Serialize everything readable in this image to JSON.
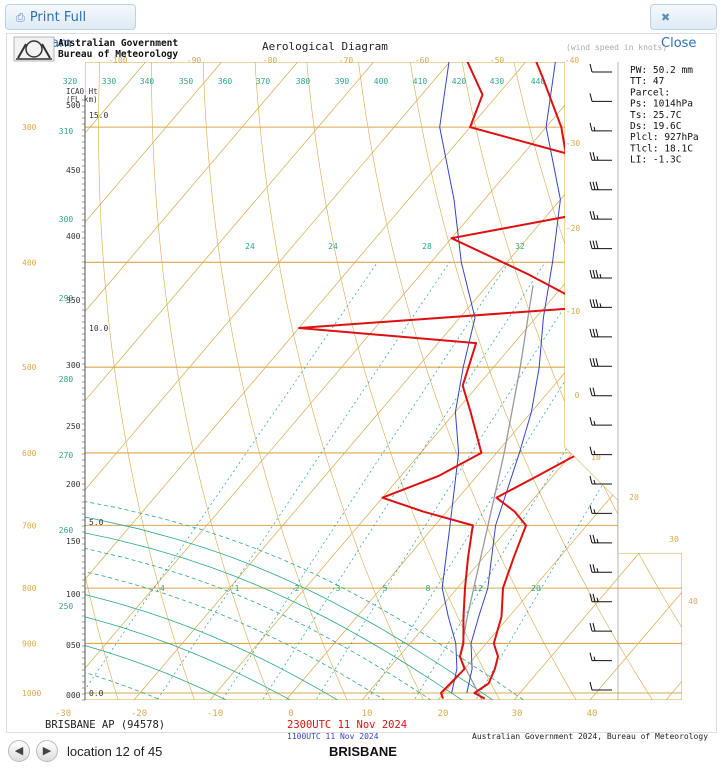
{
  "toolbar": {
    "print_label": "Print Full Diagram",
    "close_label": "Close"
  },
  "header": {
    "org_line1": "Australian Government",
    "org_line2": "Bureau of Meteorology",
    "title": "Aerological Diagram",
    "wind_units": "(wind speed in knots)"
  },
  "stats": {
    "lines": [
      "PW: 50.2 mm",
      "TT:  47",
      "Parcel:",
      " Ps: 1014hPa",
      " Ts:  25.7C",
      " Ds:  19.6C",
      " Plcl:  927hPa",
      " Tlcl:  18.1C",
      " LI:  -1.3C"
    ]
  },
  "footer_info": {
    "station": "BRISBANE AP (94578)",
    "time_red": "2300UTC 11 Nov 2024",
    "time_blue": "1100UTC 11 Nov 2024",
    "credit": "Australian Government 2024, Bureau of Meteorology"
  },
  "navigation": {
    "location_text": "location 12 of 45",
    "station_name": "BRISBANE"
  },
  "colors": {
    "axes": "#d9a94a",
    "dry_adiabats": "#d9a94a",
    "moist_adiabats": "#2aa88a",
    "mixing_ratio": "#1aa0a0",
    "sounding_2300": "#dd1111",
    "sounding_1100": "#3344cc",
    "parcel": "#999999",
    "iso_labels": "#2aa88a"
  },
  "chart_data": {
    "type": "line",
    "title": "Aerological Diagram",
    "xlabel": "",
    "ylabel": "",
    "pressure_levels": [
      1000,
      900,
      800,
      700,
      600,
      500,
      400,
      300,
      200
    ],
    "temperature_ticks": [
      -30,
      -20,
      -10,
      0,
      10,
      20,
      30,
      40
    ],
    "top_temperature_ticks": [
      -100,
      -90,
      -80,
      -70,
      -60,
      -50,
      -40
    ],
    "diagonal_temperature_labels": [
      "-30",
      "-20",
      "-10",
      "0",
      "10",
      "20",
      "30",
      "40"
    ],
    "theta_labels": [
      "320",
      "330",
      "340",
      "350",
      "360",
      "370",
      "380",
      "390",
      "400",
      "410",
      "420",
      "430",
      "440"
    ],
    "theta_side_labels": [
      "310",
      "300",
      "290",
      "280",
      "270",
      "260",
      "250"
    ],
    "theta_e_labels": [
      "24",
      "24",
      "28",
      "32"
    ],
    "mixing_ratio_labels": [
      ".4",
      "1",
      "2",
      "3",
      "5",
      "8",
      "12",
      "20"
    ],
    "height_axis": {
      "title_lines": [
        "ICAO Ht",
        "(FL   km)"
      ],
      "pressure_ticks": [
        "500",
        "450",
        "400",
        "350",
        "300",
        "250",
        "200",
        "150",
        "100",
        "050",
        "000"
      ],
      "km_ticks": [
        "15.0",
        "10.0",
        "5.0",
        "0.0"
      ]
    },
    "series": [
      {
        "name": "2300UTC 11 Nov 2024",
        "temperature": [
          [
            1012,
            26.0
          ],
          [
            1000,
            24.0
          ],
          [
            980,
            24.8
          ],
          [
            950,
            24.0
          ],
          [
            925,
            23.0
          ],
          [
            900,
            21.0
          ],
          [
            850,
            19.0
          ],
          [
            800,
            16.0
          ],
          [
            750,
            14.0
          ],
          [
            700,
            12.0
          ],
          [
            680,
            9.0
          ],
          [
            660,
            5.0
          ],
          [
            630,
            8.0
          ],
          [
            600,
            11.0
          ],
          [
            570,
            10.0
          ],
          [
            540,
            8.0
          ],
          [
            500,
            6.0
          ],
          [
            475,
            5.0
          ],
          [
            450,
            7.0
          ],
          [
            420,
            1.0
          ],
          [
            400,
            -4.0
          ],
          [
            380,
            -9.0
          ],
          [
            360,
            -15.0
          ],
          [
            330,
            -22.0
          ],
          [
            300,
            -28.0
          ],
          [
            270,
            -36.0
          ],
          [
            250,
            -42.0
          ],
          [
            230,
            -47.0
          ],
          [
            210,
            -53.0
          ],
          [
            200,
            -56.0
          ],
          [
            185,
            -60.0
          ],
          [
            170,
            -62.0
          ],
          [
            150,
            -66.0
          ],
          [
            135,
            -68.0
          ],
          [
            120,
            -70.0
          ],
          [
            110,
            -73.0
          ],
          [
            100,
            -75.0
          ]
        ],
        "dewpoint": [
          [
            1012,
            20.5
          ],
          [
            1000,
            19.6
          ],
          [
            950,
            20.0
          ],
          [
            925,
            18.0
          ],
          [
            900,
            17.0
          ],
          [
            850,
            14.0
          ],
          [
            800,
            11.0
          ],
          [
            750,
            8.0
          ],
          [
            700,
            5.0
          ],
          [
            680,
            -3.0
          ],
          [
            660,
            -10.0
          ],
          [
            630,
            -5.0
          ],
          [
            600,
            -2.0
          ],
          [
            550,
            -8.0
          ],
          [
            520,
            -12.0
          ],
          [
            475,
            -15.0
          ],
          [
            460,
            -40.0
          ],
          [
            440,
            -4.0
          ],
          [
            410,
            -16.0
          ],
          [
            380,
            -30.0
          ],
          [
            360,
            -15.0
          ],
          [
            340,
            -10.0
          ],
          [
            320,
            -22.0
          ],
          [
            300,
            -40.0
          ],
          [
            280,
            -42.0
          ],
          [
            260,
            -48.0
          ],
          [
            240,
            -52.0
          ],
          [
            220,
            -64.0
          ],
          [
            200,
            -68.0
          ],
          [
            185,
            -70.0
          ],
          [
            170,
            -80.0
          ],
          [
            150,
            -82.0
          ],
          [
            135,
            -92.0
          ],
          [
            120,
            -95.0
          ],
          [
            110,
            -102.0
          ],
          [
            100,
            -104.0
          ]
        ]
      },
      {
        "name": "1100UTC 11 Nov 2024",
        "temperature": [
          [
            1000,
            23.0
          ],
          [
            950,
            21.0
          ],
          [
            900,
            18.0
          ],
          [
            850,
            16.0
          ],
          [
            800,
            14.0
          ],
          [
            700,
            8.0
          ],
          [
            600,
            3.0
          ],
          [
            550,
            0.0
          ],
          [
            500,
            -4.0
          ],
          [
            450,
            -9.0
          ],
          [
            400,
            -14.0
          ],
          [
            350,
            -20.0
          ],
          [
            300,
            -30.0
          ],
          [
            250,
            -38.0
          ],
          [
            220,
            -45.0
          ],
          [
            200,
            -52.0
          ],
          [
            180,
            -60.0
          ],
          [
            160,
            -64.0
          ],
          [
            140,
            -70.0
          ],
          [
            120,
            -66.0
          ],
          [
            110,
            -64.0
          ],
          [
            100,
            -66.0
          ]
        ],
        "dewpoint": [
          [
            1000,
            21.0
          ],
          [
            950,
            19.0
          ],
          [
            900,
            16.0
          ],
          [
            850,
            12.0
          ],
          [
            800,
            8.0
          ],
          [
            700,
            2.0
          ],
          [
            600,
            -5.0
          ],
          [
            550,
            -10.0
          ],
          [
            500,
            -14.0
          ],
          [
            450,
            -18.0
          ],
          [
            400,
            -26.0
          ],
          [
            350,
            -34.0
          ],
          [
            300,
            -44.0
          ],
          [
            250,
            -52.0
          ],
          [
            220,
            -58.0
          ],
          [
            200,
            -68.0
          ],
          [
            180,
            -76.0
          ],
          [
            165,
            -82.0
          ],
          [
            150,
            -72.0
          ],
          [
            130,
            -98.0
          ],
          [
            115,
            -95.0
          ],
          [
            100,
            -88.0
          ]
        ]
      },
      {
        "name": "parcel",
        "temperature": [
          [
            1014,
            25.7
          ],
          [
            927,
            18.1
          ],
          [
            850,
            14.5
          ],
          [
            700,
            7.0
          ],
          [
            600,
            1.0
          ],
          [
            500,
            -6.5
          ],
          [
            420,
            -14.0
          ]
        ]
      }
    ],
    "winds": [
      {
        "speed": 10,
        "dir": 270
      },
      {
        "speed": 10,
        "dir": 270
      },
      {
        "speed": 15,
        "dir": 280
      },
      {
        "speed": 25,
        "dir": 270
      },
      {
        "speed": 30,
        "dir": 270
      },
      {
        "speed": 25,
        "dir": 270
      },
      {
        "speed": 30,
        "dir": 265
      },
      {
        "speed": 35,
        "dir": 270
      },
      {
        "speed": 35,
        "dir": 270
      },
      {
        "speed": 30,
        "dir": 270
      },
      {
        "speed": 30,
        "dir": 270
      },
      {
        "speed": 20,
        "dir": 260
      },
      {
        "speed": 15,
        "dir": 260
      },
      {
        "speed": 15,
        "dir": 250
      },
      {
        "speed": 15,
        "dir": 260
      },
      {
        "speed": 15,
        "dir": 260
      },
      {
        "speed": 25,
        "dir": 270
      },
      {
        "speed": 25,
        "dir": 270
      },
      {
        "speed": 25,
        "dir": 265
      },
      {
        "speed": 20,
        "dir": 260
      },
      {
        "speed": 15,
        "dir": 250
      },
      {
        "speed": 10,
        "dir": 240
      }
    ]
  }
}
